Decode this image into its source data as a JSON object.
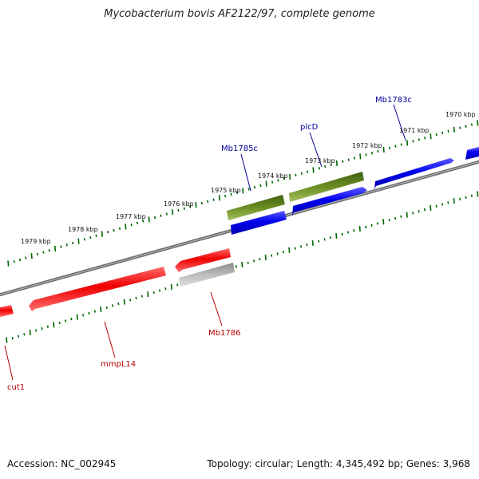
{
  "title": "Mycobacterium bovis AF2122/97, complete genome",
  "footer": {
    "accession": "Accession: NC_002945",
    "summary": "Topology: circular; Length: 4,345,492 bp; Genes: 3,968"
  },
  "colors": {
    "forward_gene": "#0000ee",
    "reverse_gene": "#ee0000",
    "highlight_gene": "#6b8e23",
    "pseudo_gene": "#b0b0b0",
    "tick": "#006600",
    "forward_label": "#000099",
    "reverse_label": "#bb0000"
  },
  "kbp_labels": [
    "1970 kbp",
    "1971 kbp",
    "1972 kbp",
    "1973 kbp",
    "1974 kbp",
    "1975 kbp",
    "1976 kbp",
    "1977 kbp",
    "1978 kbp",
    "1979 kbp"
  ],
  "forward_gene_labels": [
    "Mb1783c",
    "plcD",
    "Mb1785c"
  ],
  "reverse_gene_labels": [
    "Mb1786",
    "mmpL14",
    "cut1"
  ]
}
